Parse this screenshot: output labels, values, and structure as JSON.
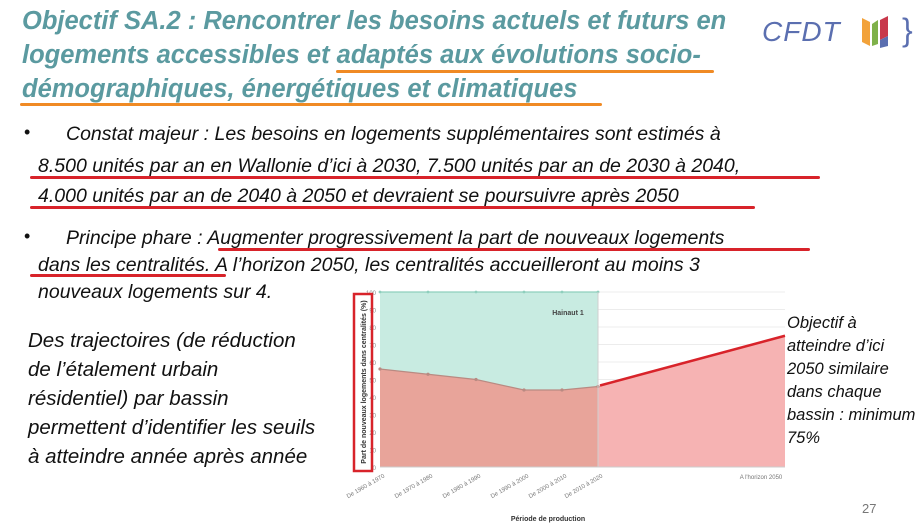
{
  "title": {
    "line1": "Objectif SA.2 :  Rencontrer les besoins actuels et futurs en",
    "line2_a": "logements accessibles et ",
    "line2_b": "adaptés aux évolutions socio-",
    "line3": "démographiques, énergétiques et climatiques"
  },
  "logo": {
    "text": "CFDT",
    "brackets": "}"
  },
  "bullet1": {
    "dot": "•",
    "line1": "Constat majeur : Les besoins en logements supplémentaires sont estimés à",
    "line2": "8.500 unités par an en Wallonie d’ici à 2030, 7.500 unités par an de 2030 à 2040,",
    "line3": "4.000 unités par an de 2040 à 2050 et devraient se poursuivre après 2050"
  },
  "bullet2": {
    "dot": "•",
    "line1_a": "Principe phare : ",
    "line1_b": "Augmenter progressivement la part de nouveaux logements",
    "line2_a": "dans les centralités",
    "line2_b": ". A l’horizon 2050, les centralités accueilleront au moins 3",
    "line3": "nouveaux logements sur 4."
  },
  "left_note": "Des trajectoires (de réduction de l’étalement urbain résidentiel) par bassin permettent d’identifier les seuils à atteindre année après année",
  "right_note": "Objectif à atteindre d’ici 2050 similaire dans chaque bassin : minimum 75%",
  "page_number": "27",
  "chart_data": {
    "type": "area",
    "title": "Hainaut 1",
    "xlabel": "Période de production",
    "ylabel": "Part de nouveaux logements dans centralités (%)",
    "ylim": [
      0,
      100
    ],
    "yticks": [
      0,
      10,
      20,
      30,
      40,
      50,
      60,
      70,
      80,
      90,
      100
    ],
    "categories": [
      "De 1960 à 1970",
      "De 1970 à 1980",
      "De 1980 à 1990",
      "De 1990 à 2000",
      "De 2000 à 2010",
      "De 2010 à 2020",
      "A l'horizon 2050"
    ],
    "series": [
      {
        "values": [
          56,
          53,
          50,
          44,
          44,
          46,
          null
        ],
        "color": "#e8a49a"
      },
      {
        "values": [
          100,
          100,
          100,
          100,
          100,
          100,
          null
        ],
        "color": "#c8ebe1"
      },
      {
        "values": [
          null,
          null,
          null,
          null,
          null,
          46,
          75
        ],
        "color": "#f6b3b3"
      }
    ],
    "accent_colors": {
      "trend": "#d8232a",
      "highlight_box": "#d8232a"
    }
  }
}
